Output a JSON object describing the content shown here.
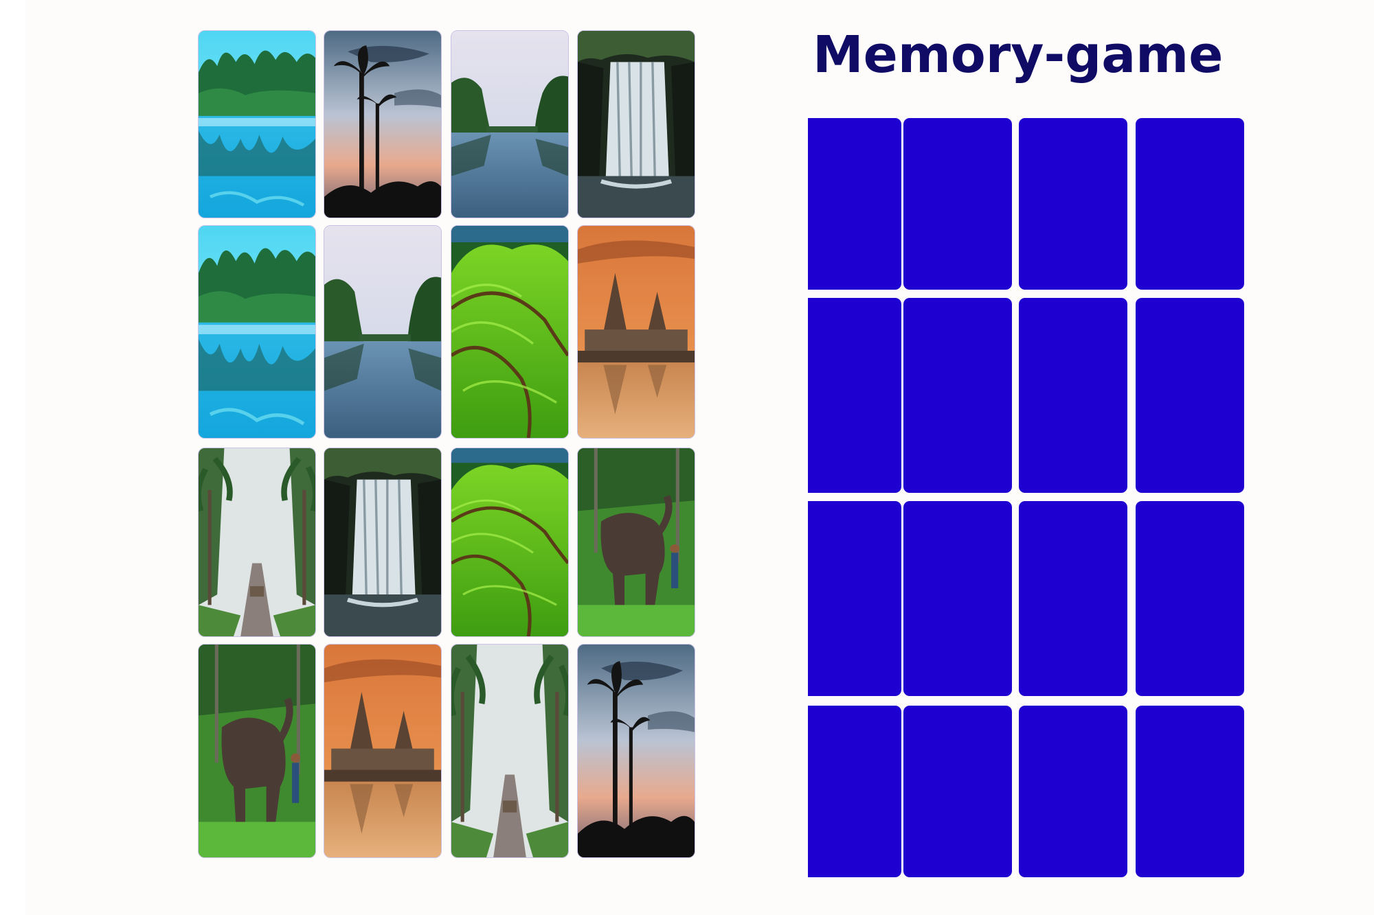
{
  "title": "Memory-game",
  "colors": {
    "title": "#100c66",
    "card_back": "#1e00d0",
    "card_border": "#c9c2e6"
  },
  "revealed_board": {
    "rows": 4,
    "columns": 4,
    "cards": [
      {
        "image": "lake-reflection-image"
      },
      {
        "image": "palm-sunset-image"
      },
      {
        "image": "river-forest-image"
      },
      {
        "image": "waterfall-image"
      },
      {
        "image": "lake-reflection-image"
      },
      {
        "image": "river-forest-image"
      },
      {
        "image": "tea-hills-image"
      },
      {
        "image": "shore-temple-image"
      },
      {
        "image": "misty-palm-road-image"
      },
      {
        "image": "waterfall-image"
      },
      {
        "image": "tea-hills-image"
      },
      {
        "image": "elephant-image"
      },
      {
        "image": "elephant-image"
      },
      {
        "image": "shore-temple-image"
      },
      {
        "image": "misty-palm-road-image"
      },
      {
        "image": "palm-sunset-image"
      }
    ]
  },
  "hidden_board": {
    "rows": 4,
    "columns": 4,
    "face_down_cards": 16
  }
}
